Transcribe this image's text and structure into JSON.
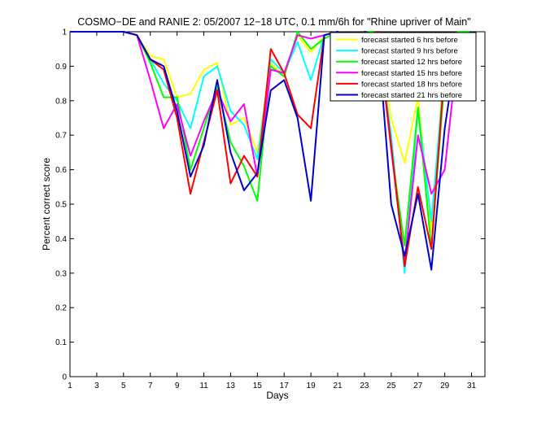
{
  "chart_data": {
    "type": "line",
    "title": "COSMO−DE and RANIE 2: 05/2007 12−18 UTC, 0.1 mm/6h for \"Rhine upriver of Main\"",
    "xlabel": "Days",
    "ylabel": "Percent correct score",
    "xlim": [
      1,
      32
    ],
    "ylim": [
      0,
      1
    ],
    "x_ticks": [
      "1",
      "3",
      "5",
      "7",
      "9",
      "11",
      "13",
      "15",
      "17",
      "19",
      "21",
      "23",
      "25",
      "27",
      "29",
      "31"
    ],
    "y_ticks": [
      "0",
      "0.1",
      "0.2",
      "0.3",
      "0.4",
      "0.5",
      "0.6",
      "0.7",
      "0.8",
      "0.9",
      "1"
    ],
    "grid": false,
    "legend_position": "top-right",
    "x": [
      1,
      2,
      3,
      4,
      5,
      6,
      7,
      8,
      9,
      10,
      11,
      12,
      13,
      14,
      15,
      16,
      17,
      18,
      19,
      20,
      21,
      22,
      23,
      24,
      25,
      26,
      27,
      28,
      29,
      30,
      31
    ],
    "series": [
      {
        "name": "forecast started 6 hrs before",
        "color": "#ffff00",
        "values": [
          1,
          1,
          1,
          1,
          1,
          0.99,
          0.93,
          0.92,
          0.81,
          0.82,
          0.89,
          0.91,
          0.73,
          0.75,
          0.65,
          0.91,
          0.87,
          0.99,
          0.94,
          0.99,
          1,
          0.86,
          1,
          0.99,
          0.75,
          0.62,
          0.81,
          0.42,
          0.93,
          0.9,
          1
        ]
      },
      {
        "name": "forecast started 9 hrs before",
        "color": "#00ffff",
        "values": [
          1,
          1,
          1,
          1,
          1,
          0.99,
          0.92,
          0.85,
          0.8,
          0.72,
          0.87,
          0.9,
          0.77,
          0.73,
          0.63,
          0.92,
          0.88,
          0.97,
          0.86,
          0.99,
          1,
          0.84,
          1,
          0.99,
          0.7,
          0.3,
          0.78,
          0.45,
          0.9,
          0.97,
          1
        ]
      },
      {
        "name": "forecast started 12 hrs before",
        "color": "#00ff00",
        "values": [
          1,
          1,
          1,
          1,
          1,
          0.99,
          0.91,
          0.81,
          0.81,
          0.6,
          0.72,
          0.84,
          0.68,
          0.61,
          0.51,
          0.9,
          0.87,
          1,
          0.95,
          0.98,
          1,
          0.83,
          1,
          1,
          0.66,
          0.38,
          0.78,
          0.37,
          0.87,
          1,
          1
        ]
      },
      {
        "name": "forecast started 15 hrs before",
        "color": "#ff00ff",
        "values": [
          1,
          1,
          1,
          1,
          1,
          0.99,
          0.86,
          0.72,
          0.79,
          0.64,
          0.74,
          0.83,
          0.74,
          0.79,
          0.58,
          0.89,
          0.88,
          0.99,
          0.98,
          0.99,
          1,
          0.85,
          0.99,
          1,
          0.66,
          0.33,
          0.7,
          0.53,
          0.6,
          0.96,
          1
        ]
      },
      {
        "name": "forecast started 18 hrs before",
        "color": "#ff0000",
        "values": [
          1,
          1,
          1,
          1,
          1,
          0.99,
          0.92,
          0.89,
          0.75,
          0.53,
          0.68,
          0.83,
          0.56,
          0.64,
          0.58,
          0.95,
          0.88,
          0.76,
          0.72,
          0.99,
          1,
          0.82,
          0.99,
          1,
          0.67,
          0.32,
          0.55,
          0.37,
          0.9,
          0.91,
          1
        ]
      },
      {
        "name": "forecast started 21 hrs before",
        "color": "#0000cc",
        "values": [
          1,
          1,
          1,
          1,
          1,
          0.99,
          0.92,
          0.9,
          0.77,
          0.58,
          0.67,
          0.86,
          0.65,
          0.54,
          0.59,
          0.83,
          0.86,
          0.75,
          0.51,
          0.99,
          1,
          0.82,
          1,
          0.99,
          0.5,
          0.35,
          0.53,
          0.31,
          0.72,
          0.98,
          1
        ]
      }
    ]
  }
}
